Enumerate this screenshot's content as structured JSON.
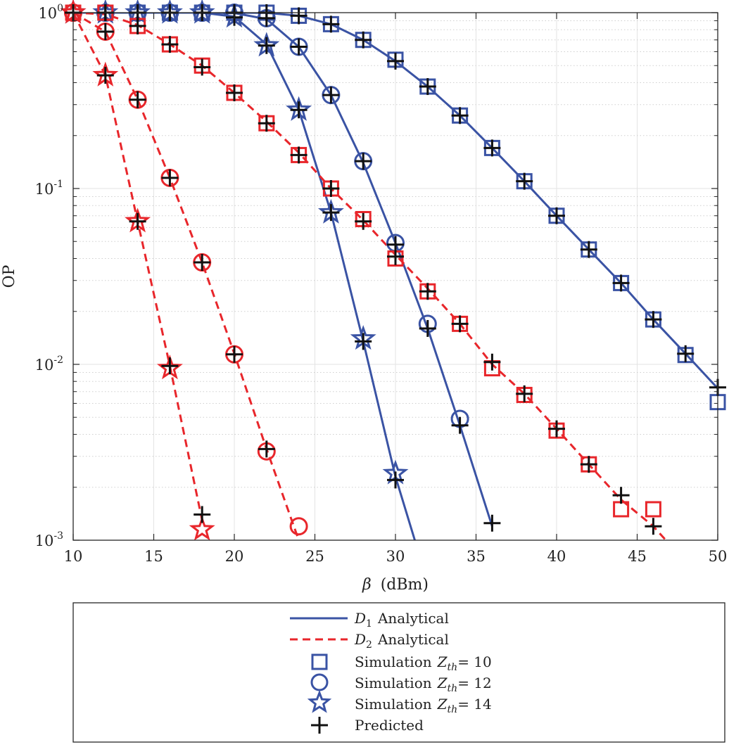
{
  "chart_data": {
    "type": "line",
    "y_scale": "log",
    "xlim": [
      10,
      50
    ],
    "ylim": [
      0.001,
      1
    ],
    "grid": true,
    "minor_grid": true,
    "xlabel_symbol": "β",
    "xlabel_unit": "(dBm)",
    "ylabel": "OP",
    "x_ticks": [
      10,
      15,
      20,
      25,
      30,
      35,
      40,
      45,
      50
    ],
    "x_tick_labels": [
      "10",
      "15",
      "20",
      "25",
      "30",
      "35",
      "40",
      "45",
      "50"
    ],
    "y_ticks": [
      {
        "value": 1,
        "base": "10",
        "exp": "0"
      },
      {
        "value": 0.1,
        "base": "10",
        "exp": "-1"
      },
      {
        "value": 0.01,
        "base": "10",
        "exp": "-2"
      },
      {
        "value": 0.001,
        "base": "10",
        "exp": "-3"
      }
    ],
    "colors": {
      "d1": "#3A53A4",
      "d2": "#E8262B",
      "predicted": "#111111"
    },
    "series": [
      {
        "name": "D1 Zth=10",
        "user": "D1",
        "marker": "square",
        "x": [
          10,
          12,
          14,
          16,
          18,
          20,
          22,
          24,
          26,
          28,
          30,
          32,
          34,
          36,
          38,
          40,
          42,
          44,
          46,
          48,
          50
        ],
        "values": [
          1,
          1,
          1,
          1,
          1,
          1,
          0.997,
          0.96,
          0.86,
          0.7,
          0.53,
          0.38,
          0.26,
          0.17,
          0.11,
          0.07,
          0.045,
          0.029,
          0.018,
          0.0115,
          0.0073
        ]
      },
      {
        "name": "D1 Zth=12",
        "user": "D1",
        "marker": "circle",
        "x": [
          10,
          12,
          14,
          16,
          18,
          20,
          22,
          24,
          26,
          28,
          30,
          32,
          34,
          36
        ],
        "values": [
          1,
          1,
          1,
          1,
          1,
          0.995,
          0.92,
          0.64,
          0.34,
          0.14,
          0.049,
          0.016,
          0.0045,
          0.0012
        ]
      },
      {
        "name": "D1 Zth=14",
        "user": "D1",
        "marker": "star",
        "x": [
          10,
          12,
          14,
          16,
          18,
          20,
          22,
          24,
          26,
          28,
          30,
          31.2
        ],
        "values": [
          1,
          1,
          1,
          1,
          1,
          0.95,
          0.66,
          0.28,
          0.073,
          0.0135,
          0.0023,
          0.001
        ]
      },
      {
        "name": "D2 Zth=10",
        "user": "D2",
        "marker": "square",
        "x": [
          10,
          12,
          14,
          16,
          18,
          20,
          22,
          24,
          26,
          28,
          30,
          32,
          34,
          36,
          38,
          40,
          42,
          44,
          46,
          47
        ],
        "values": [
          1,
          0.98,
          0.85,
          0.66,
          0.5,
          0.35,
          0.24,
          0.16,
          0.1,
          0.066,
          0.042,
          0.027,
          0.017,
          0.01,
          0.0068,
          0.0043,
          0.0027,
          0.0017,
          0.0012,
          0.00095
        ]
      },
      {
        "name": "D2 Zth=12",
        "user": "D2",
        "marker": "circle",
        "x": [
          10,
          12,
          14,
          16,
          18,
          20,
          22,
          24
        ],
        "values": [
          1,
          0.78,
          0.32,
          0.115,
          0.038,
          0.0115,
          0.0033,
          0.001
        ]
      },
      {
        "name": "D2 Zth=14",
        "user": "D2",
        "marker": "star",
        "x": [
          10,
          12,
          14,
          16,
          18
        ],
        "values": [
          1,
          0.44,
          0.065,
          0.0098,
          0.0013
        ]
      }
    ],
    "simulation_points": [
      {
        "user": "D1",
        "marker": "square",
        "x": [
          10,
          12,
          14,
          16,
          18,
          20,
          22,
          24,
          26,
          28,
          30,
          32,
          34,
          36,
          38,
          40,
          42,
          44,
          46,
          48,
          50
        ],
        "values": [
          1,
          1,
          1,
          1,
          1,
          1,
          1,
          0.96,
          0.86,
          0.7,
          0.54,
          0.38,
          0.26,
          0.17,
          0.11,
          0.07,
          0.045,
          0.029,
          0.018,
          0.0113,
          0.0061
        ]
      },
      {
        "user": "D1",
        "marker": "circle",
        "x": [
          10,
          12,
          14,
          16,
          18,
          20,
          22,
          24,
          26,
          28,
          30,
          32,
          34
        ],
        "values": [
          1,
          1,
          1,
          1,
          1,
          1,
          0.93,
          0.64,
          0.34,
          0.143,
          0.049,
          0.017,
          0.0049
        ]
      },
      {
        "user": "D1",
        "marker": "star",
        "x": [
          10,
          12,
          14,
          16,
          18,
          20,
          22,
          24,
          26,
          28,
          30
        ],
        "values": [
          1,
          1,
          1,
          1,
          1,
          0.95,
          0.65,
          0.28,
          0.073,
          0.014,
          0.0024
        ]
      },
      {
        "user": "D2",
        "marker": "square",
        "x": [
          10,
          12,
          14,
          16,
          18,
          20,
          22,
          24,
          26,
          28,
          30,
          32,
          34,
          36,
          38,
          40,
          42,
          44,
          46
        ],
        "values": [
          1,
          1,
          0.84,
          0.66,
          0.5,
          0.35,
          0.235,
          0.155,
          0.1,
          0.067,
          0.04,
          0.026,
          0.017,
          0.0095,
          0.0067,
          0.0042,
          0.0027,
          0.0015,
          0.0015
        ]
      },
      {
        "user": "D2",
        "marker": "circle",
        "x": [
          10,
          12,
          14,
          16,
          18,
          20,
          22,
          24
        ],
        "values": [
          1,
          0.78,
          0.32,
          0.115,
          0.038,
          0.0114,
          0.0032,
          0.0012
        ]
      },
      {
        "user": "D2",
        "marker": "star",
        "x": [
          10,
          12,
          14,
          16,
          18
        ],
        "values": [
          1,
          0.44,
          0.065,
          0.0095,
          0.00115
        ]
      }
    ],
    "predicted_points": [
      {
        "x": [
          10,
          12,
          14,
          16,
          18,
          20,
          22,
          24,
          26,
          28,
          30,
          32,
          34,
          36,
          38,
          40,
          42,
          44,
          46,
          48,
          50
        ],
        "values": [
          1,
          1,
          1,
          1,
          1,
          1,
          1,
          0.96,
          0.86,
          0.7,
          0.53,
          0.38,
          0.26,
          0.17,
          0.11,
          0.07,
          0.045,
          0.029,
          0.018,
          0.0115,
          0.0074
        ]
      },
      {
        "x": [
          10,
          12,
          14,
          16,
          18,
          20,
          22,
          24,
          26,
          28,
          30,
          32,
          34,
          36
        ],
        "values": [
          1,
          1,
          1,
          1,
          1,
          1,
          0.93,
          0.64,
          0.34,
          0.143,
          0.048,
          0.016,
          0.0045,
          0.00125
        ]
      },
      {
        "x": [
          10,
          12,
          14,
          16,
          18,
          20,
          22,
          24,
          26,
          28,
          30
        ],
        "values": [
          1,
          1,
          1,
          1,
          1,
          0.94,
          0.65,
          0.28,
          0.073,
          0.0135,
          0.0022
        ]
      },
      {
        "x": [
          10,
          12,
          14,
          16,
          18,
          20,
          22,
          24,
          26,
          28,
          30,
          32,
          34,
          36,
          38,
          40,
          42,
          44,
          46
        ],
        "values": [
          1,
          1,
          0.84,
          0.66,
          0.49,
          0.35,
          0.235,
          0.155,
          0.1,
          0.065,
          0.041,
          0.026,
          0.017,
          0.0103,
          0.0068,
          0.0043,
          0.0027,
          0.0018,
          0.0012
        ]
      },
      {
        "x": [
          12,
          14,
          16,
          18,
          20,
          22
        ],
        "values": [
          0.78,
          0.32,
          0.115,
          0.038,
          0.0114,
          0.0033
        ]
      },
      {
        "x": [
          12,
          14,
          16,
          18
        ],
        "values": [
          0.44,
          0.065,
          0.0098,
          0.0014
        ]
      }
    ]
  },
  "legend": {
    "d1_analytical": {
      "symbol": "D",
      "sub": "1",
      "text": "Analytical"
    },
    "d2_analytical": {
      "symbol": "D",
      "sub": "2",
      "text": "Analytical"
    },
    "sim_10": {
      "text": "Simulation",
      "symbol": "Z",
      "sub": "th",
      "value": "= 10"
    },
    "sim_12": {
      "text": "Simulation",
      "symbol": "Z",
      "sub": "th",
      "value": "= 12"
    },
    "sim_14": {
      "text": "Simulation",
      "symbol": "Z",
      "sub": "th",
      "value": "= 14"
    },
    "predicted": {
      "text": "Predicted"
    }
  }
}
